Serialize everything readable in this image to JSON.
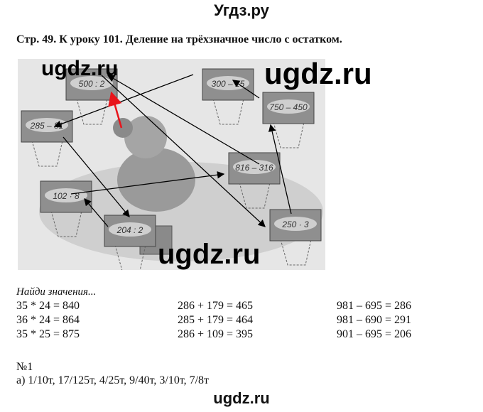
{
  "site_title": "Угдз.ру",
  "heading": "Стр. 49.  К уроку 101. Деление на трёхзначное число с остатком.",
  "watermark": "ugdz.ru",
  "illustration": {
    "boards": [
      "500 : 2",
      "300 – 15",
      "750 – 450",
      "285 – 81",
      "816 – 316",
      "102 · 8",
      "204 : 2",
      "250 · 3"
    ],
    "arrow_color": "#000000",
    "highlight_arrow_color": "#e8141b"
  },
  "section_title": "Найди значения...",
  "equations": [
    [
      "35 * 24 = 840",
      "36 * 24 = 864",
      "35 * 25 = 875"
    ],
    [
      "286 + 179 = 465",
      "285 + 179 = 464",
      "286 + 109 = 395"
    ],
    [
      "981 – 695 = 286",
      "981 – 690 = 291",
      "901 – 695 = 206"
    ]
  ],
  "task_number": "№1",
  "task_answer": "а) 1/10т, 17/125т, 4/25т, 9/40т, 3/10т, 7/8т",
  "footer": "ugdz.ru"
}
